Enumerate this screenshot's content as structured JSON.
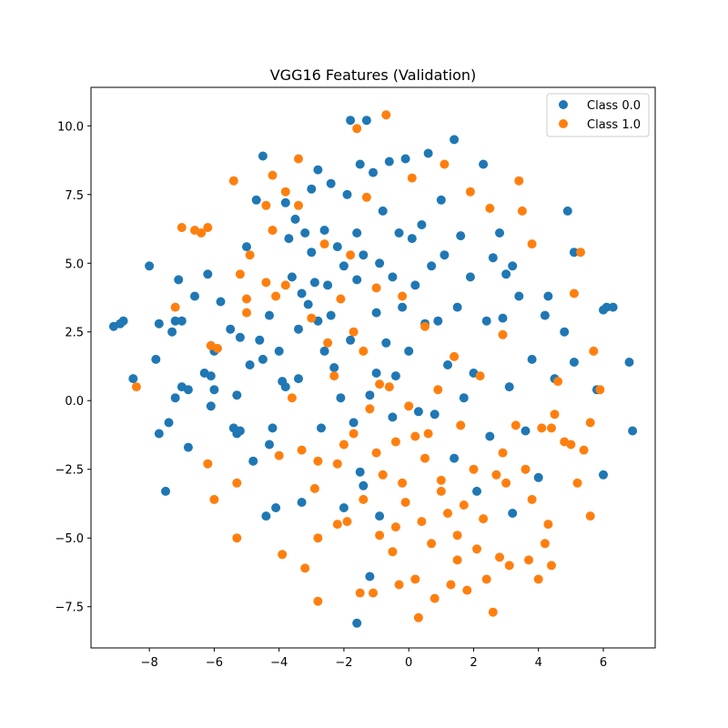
{
  "chart_data": {
    "type": "scatter",
    "title": "VGG16 Features (Validation)",
    "xlabel": "",
    "ylabel": "",
    "xlim": [
      -9.8,
      7.6
    ],
    "ylim": [
      -9.0,
      11.4
    ],
    "xticks": [
      -8,
      -6,
      -4,
      -2,
      0,
      2,
      4,
      6
    ],
    "xtick_labels": [
      "−8",
      "−6",
      "−4",
      "−2",
      "0",
      "2",
      "4",
      "6"
    ],
    "yticks": [
      -7.5,
      -5.0,
      -2.5,
      0.0,
      2.5,
      5.0,
      7.5,
      10.0
    ],
    "ytick_labels": [
      "−7.5",
      "−5.0",
      "−2.5",
      "0.0",
      "2.5",
      "5.0",
      "7.5",
      "10.0"
    ],
    "grid": false,
    "legend_position": "top-right",
    "series": [
      {
        "name": "Class 0.0",
        "color": "#1f77b4",
        "points": [
          [
            -9.1,
            2.7
          ],
          [
            -8.9,
            2.8
          ],
          [
            -8.8,
            2.9
          ],
          [
            -8.5,
            0.8
          ],
          [
            -8.0,
            4.9
          ],
          [
            -7.8,
            1.5
          ],
          [
            -7.7,
            2.8
          ],
          [
            -7.7,
            -1.2
          ],
          [
            -7.5,
            -3.3
          ],
          [
            -7.4,
            -0.8
          ],
          [
            -7.3,
            2.5
          ],
          [
            -7.2,
            0.1
          ],
          [
            -7.2,
            2.9
          ],
          [
            -7.1,
            4.4
          ],
          [
            -7.0,
            0.5
          ],
          [
            -7.0,
            2.9
          ],
          [
            -6.8,
            0.4
          ],
          [
            -6.8,
            -1.7
          ],
          [
            -6.6,
            3.8
          ],
          [
            -6.3,
            1.0
          ],
          [
            -6.2,
            4.6
          ],
          [
            -6.1,
            0.9
          ],
          [
            -6.0,
            1.8
          ],
          [
            -6.0,
            0.4
          ],
          [
            -5.8,
            3.6
          ],
          [
            -5.5,
            2.6
          ],
          [
            -5.4,
            -1.0
          ],
          [
            -5.3,
            0.2
          ],
          [
            -5.3,
            -1.2
          ],
          [
            -5.2,
            2.3
          ],
          [
            -5.2,
            -1.1
          ],
          [
            -5.0,
            5.6
          ],
          [
            -4.9,
            1.3
          ],
          [
            -4.8,
            -2.2
          ],
          [
            -4.7,
            7.3
          ],
          [
            -4.6,
            2.2
          ],
          [
            -4.5,
            8.9
          ],
          [
            -4.5,
            1.5
          ],
          [
            -4.4,
            -4.2
          ],
          [
            -4.3,
            3.1
          ],
          [
            -4.2,
            -1.0
          ],
          [
            -4.1,
            -3.9
          ],
          [
            -4.0,
            1.8
          ],
          [
            -3.9,
            0.7
          ],
          [
            -3.8,
            7.2
          ],
          [
            -3.8,
            0.5
          ],
          [
            -3.7,
            5.9
          ],
          [
            -3.6,
            4.5
          ],
          [
            -3.5,
            6.6
          ],
          [
            -3.4,
            2.6
          ],
          [
            -3.4,
            0.8
          ],
          [
            -3.3,
            3.9
          ],
          [
            -3.2,
            6.1
          ],
          [
            -3.1,
            3.5
          ],
          [
            -3.0,
            7.7
          ],
          [
            -3.0,
            5.4
          ],
          [
            -2.9,
            4.3
          ],
          [
            -2.8,
            8.4
          ],
          [
            -2.8,
            2.9
          ],
          [
            -2.7,
            -1.0
          ],
          [
            -2.6,
            6.2
          ],
          [
            -2.5,
            4.2
          ],
          [
            -2.4,
            7.9
          ],
          [
            -2.4,
            3.1
          ],
          [
            -2.3,
            1.2
          ],
          [
            -2.2,
            5.6
          ],
          [
            -2.1,
            0.1
          ],
          [
            -2.0,
            4.9
          ],
          [
            -2.0,
            -3.9
          ],
          [
            -1.9,
            7.5
          ],
          [
            -1.8,
            10.2
          ],
          [
            -1.8,
            2.2
          ],
          [
            -1.7,
            -0.8
          ],
          [
            -1.6,
            6.1
          ],
          [
            -1.6,
            4.4
          ],
          [
            -1.5,
            8.6
          ],
          [
            -1.5,
            -2.6
          ],
          [
            -1.4,
            5.3
          ],
          [
            -1.4,
            -3.1
          ],
          [
            -1.3,
            10.2
          ],
          [
            -1.2,
            0.2
          ],
          [
            -1.1,
            8.3
          ],
          [
            -1.0,
            3.2
          ],
          [
            -1.0,
            1.0
          ],
          [
            -0.9,
            5.0
          ],
          [
            -0.9,
            -4.2
          ],
          [
            -0.8,
            6.9
          ],
          [
            -0.7,
            2.1
          ],
          [
            -0.6,
            8.7
          ],
          [
            -0.5,
            4.5
          ],
          [
            -0.4,
            0.9
          ],
          [
            -0.3,
            6.1
          ],
          [
            -0.2,
            3.4
          ],
          [
            -0.1,
            8.8
          ],
          [
            0.0,
            1.8
          ],
          [
            0.1,
            5.9
          ],
          [
            0.2,
            4.2
          ],
          [
            0.3,
            -0.4
          ],
          [
            0.4,
            6.4
          ],
          [
            0.5,
            2.8
          ],
          [
            0.6,
            9.0
          ],
          [
            0.7,
            4.9
          ],
          [
            0.8,
            -0.5
          ],
          [
            0.9,
            2.9
          ],
          [
            1.0,
            7.3
          ],
          [
            1.1,
            5.3
          ],
          [
            1.2,
            1.3
          ],
          [
            1.4,
            9.5
          ],
          [
            1.4,
            -2.1
          ],
          [
            1.5,
            3.4
          ],
          [
            1.6,
            6.0
          ],
          [
            1.7,
            0.1
          ],
          [
            1.9,
            4.5
          ],
          [
            2.0,
            1.0
          ],
          [
            2.1,
            -3.3
          ],
          [
            2.3,
            8.6
          ],
          [
            2.4,
            2.9
          ],
          [
            2.5,
            -1.3
          ],
          [
            2.6,
            5.2
          ],
          [
            2.8,
            6.1
          ],
          [
            2.9,
            3.0
          ],
          [
            3.0,
            4.6
          ],
          [
            3.1,
            0.5
          ],
          [
            3.2,
            4.9
          ],
          [
            3.4,
            3.8
          ],
          [
            3.6,
            -1.1
          ],
          [
            3.8,
            1.5
          ],
          [
            4.0,
            -2.8
          ],
          [
            4.2,
            3.1
          ],
          [
            4.3,
            3.8
          ],
          [
            4.5,
            0.8
          ],
          [
            4.8,
            2.5
          ],
          [
            4.9,
            6.9
          ],
          [
            5.1,
            5.4
          ],
          [
            5.1,
            1.4
          ],
          [
            5.8,
            0.4
          ],
          [
            6.0,
            3.3
          ],
          [
            6.1,
            3.4
          ],
          [
            6.3,
            3.4
          ],
          [
            6.8,
            1.4
          ],
          [
            6.9,
            -1.1
          ],
          [
            6.0,
            -2.7
          ],
          [
            -1.6,
            -8.1
          ],
          [
            -1.2,
            -6.4
          ],
          [
            3.2,
            -4.1
          ],
          [
            -3.3,
            -3.7
          ],
          [
            -4.3,
            -1.6
          ],
          [
            -6.1,
            -0.2
          ],
          [
            -2.6,
            1.8
          ],
          [
            -0.5,
            -0.6
          ]
        ]
      },
      {
        "name": "Class 1.0",
        "color": "#ff7f0e",
        "points": [
          [
            -8.4,
            0.5
          ],
          [
            -7.2,
            3.4
          ],
          [
            -7.0,
            6.3
          ],
          [
            -6.6,
            6.2
          ],
          [
            -6.4,
            6.1
          ],
          [
            -6.2,
            6.3
          ],
          [
            -6.1,
            2.0
          ],
          [
            -6.0,
            -3.6
          ],
          [
            -6.2,
            -2.3
          ],
          [
            -5.9,
            1.9
          ],
          [
            -5.4,
            8.0
          ],
          [
            -5.3,
            -3.0
          ],
          [
            -5.3,
            -5.0
          ],
          [
            -5.2,
            4.6
          ],
          [
            -5.0,
            3.7
          ],
          [
            -5.0,
            3.2
          ],
          [
            -4.9,
            5.3
          ],
          [
            -4.4,
            7.1
          ],
          [
            -4.4,
            4.3
          ],
          [
            -4.2,
            8.2
          ],
          [
            -4.2,
            6.2
          ],
          [
            -4.1,
            3.8
          ],
          [
            -4.0,
            -2.0
          ],
          [
            -3.9,
            -5.6
          ],
          [
            -3.8,
            7.6
          ],
          [
            -3.8,
            4.2
          ],
          [
            -3.6,
            0.1
          ],
          [
            -3.4,
            8.8
          ],
          [
            -3.4,
            7.1
          ],
          [
            -3.3,
            -1.8
          ],
          [
            -3.2,
            -6.1
          ],
          [
            -3.0,
            3.0
          ],
          [
            -2.9,
            -3.2
          ],
          [
            -2.8,
            -2.2
          ],
          [
            -2.8,
            -5.0
          ],
          [
            -2.8,
            -7.3
          ],
          [
            -2.6,
            5.7
          ],
          [
            -2.5,
            2.1
          ],
          [
            -2.3,
            0.9
          ],
          [
            -2.2,
            -4.5
          ],
          [
            -2.1,
            3.7
          ],
          [
            -2.0,
            -1.6
          ],
          [
            -1.9,
            -4.4
          ],
          [
            -1.8,
            5.3
          ],
          [
            -1.7,
            2.5
          ],
          [
            -1.6,
            9.9
          ],
          [
            -1.5,
            -7.0
          ],
          [
            -1.4,
            -3.6
          ],
          [
            -1.4,
            1.8
          ],
          [
            -1.3,
            7.4
          ],
          [
            -1.2,
            -0.3
          ],
          [
            -1.1,
            -7.0
          ],
          [
            -1.0,
            4.1
          ],
          [
            -1.0,
            -1.9
          ],
          [
            -0.9,
            -4.9
          ],
          [
            -0.8,
            -2.7
          ],
          [
            -0.7,
            10.4
          ],
          [
            -0.6,
            0.5
          ],
          [
            -0.5,
            -5.5
          ],
          [
            -0.4,
            -1.5
          ],
          [
            -0.3,
            -6.7
          ],
          [
            -0.2,
            3.8
          ],
          [
            -0.1,
            -3.7
          ],
          [
            0.0,
            -0.2
          ],
          [
            0.1,
            8.1
          ],
          [
            0.2,
            -6.5
          ],
          [
            0.3,
            -7.9
          ],
          [
            0.4,
            -4.4
          ],
          [
            0.5,
            2.7
          ],
          [
            0.6,
            -1.2
          ],
          [
            0.7,
            -5.2
          ],
          [
            0.8,
            -7.2
          ],
          [
            0.9,
            0.4
          ],
          [
            1.0,
            -2.9
          ],
          [
            1.1,
            8.6
          ],
          [
            1.2,
            -4.1
          ],
          [
            1.3,
            -6.7
          ],
          [
            1.4,
            1.6
          ],
          [
            1.5,
            -5.8
          ],
          [
            1.6,
            -0.9
          ],
          [
            1.7,
            -3.8
          ],
          [
            1.8,
            -6.9
          ],
          [
            1.9,
            7.6
          ],
          [
            2.0,
            -2.5
          ],
          [
            2.1,
            -5.4
          ],
          [
            2.2,
            0.9
          ],
          [
            2.3,
            -4.3
          ],
          [
            2.4,
            -6.5
          ],
          [
            2.5,
            7.0
          ],
          [
            2.6,
            -7.7
          ],
          [
            2.7,
            -2.7
          ],
          [
            2.8,
            -5.7
          ],
          [
            2.9,
            2.4
          ],
          [
            3.0,
            -3.0
          ],
          [
            3.1,
            -6.0
          ],
          [
            3.3,
            -0.9
          ],
          [
            3.4,
            8.0
          ],
          [
            3.5,
            6.9
          ],
          [
            3.6,
            -2.5
          ],
          [
            3.7,
            -5.8
          ],
          [
            3.8,
            5.7
          ],
          [
            3.8,
            -3.6
          ],
          [
            4.0,
            -6.5
          ],
          [
            4.1,
            -1.0
          ],
          [
            4.2,
            -5.2
          ],
          [
            4.3,
            -4.5
          ],
          [
            4.4,
            -6.0
          ],
          [
            4.5,
            -0.5
          ],
          [
            4.6,
            0.7
          ],
          [
            4.8,
            -1.5
          ],
          [
            5.0,
            -1.6
          ],
          [
            5.1,
            3.9
          ],
          [
            5.2,
            -3.0
          ],
          [
            5.3,
            5.4
          ],
          [
            5.4,
            -1.8
          ],
          [
            5.6,
            -0.8
          ],
          [
            5.7,
            1.8
          ],
          [
            5.9,
            0.4
          ],
          [
            5.6,
            -4.2
          ],
          [
            4.4,
            -1.0
          ],
          [
            -0.4,
            -4.6
          ],
          [
            0.5,
            -2.1
          ],
          [
            1.0,
            -3.3
          ],
          [
            -1.7,
            -1.2
          ],
          [
            -0.9,
            0.6
          ],
          [
            0.2,
            -1.3
          ],
          [
            1.5,
            -4.9
          ],
          [
            2.9,
            -1.9
          ],
          [
            -2.2,
            -2.3
          ],
          [
            -0.2,
            -3.0
          ]
        ]
      }
    ]
  }
}
